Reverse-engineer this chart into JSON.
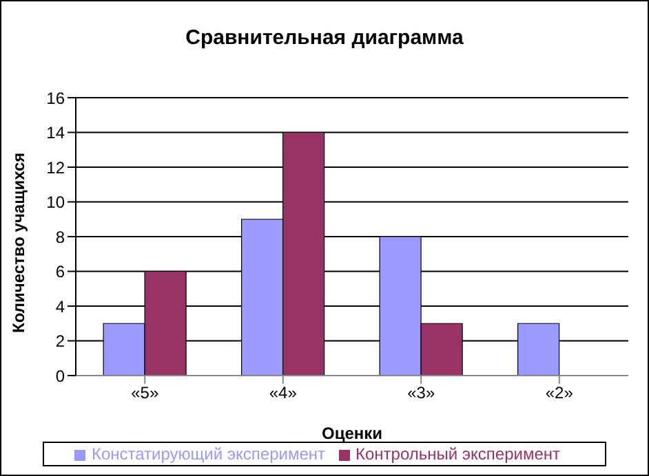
{
  "chart_data": {
    "type": "bar",
    "title": "Сравнительная диаграмма",
    "xlabel": "Оценки",
    "ylabel": "Количество учащихся",
    "categories": [
      "«5»",
      "«4»",
      "«3»",
      "«2»"
    ],
    "series": [
      {
        "name": "Констатирующий эксперимент",
        "color": "#9999ff",
        "values": [
          3,
          9,
          8,
          3
        ]
      },
      {
        "name": "Контрольный эксперимент",
        "color": "#993366",
        "values": [
          6,
          14,
          3,
          null
        ]
      }
    ],
    "ylim": [
      0,
      16
    ],
    "yticks": [
      0,
      2,
      4,
      6,
      8,
      10,
      12,
      14,
      16
    ],
    "grid": "y",
    "legend": "bottom"
  }
}
